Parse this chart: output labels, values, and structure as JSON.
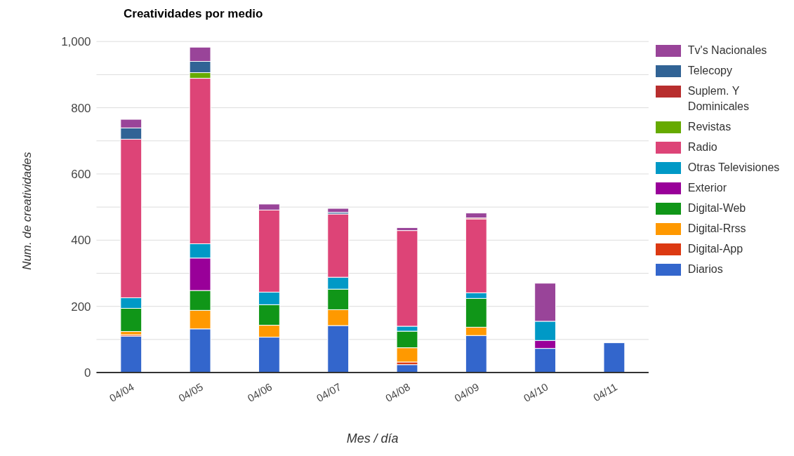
{
  "chart_data": {
    "type": "bar",
    "title": "Creatividades por medio",
    "xlabel": "Mes / día",
    "ylabel": "Num. de creatividades",
    "categories": [
      "04/04",
      "04/05",
      "04/06",
      "04/07",
      "04/08",
      "04/09",
      "04/10",
      "04/11"
    ],
    "stacked": true,
    "series": [
      {
        "name": "Diarios",
        "color": "#3366cc",
        "values": [
          110,
          132,
          107,
          142,
          24,
          112,
          73,
          90
        ]
      },
      {
        "name": "Digital-App",
        "color": "#dc3912",
        "values": [
          4,
          null,
          null,
          null,
          8,
          null,
          null,
          null
        ]
      },
      {
        "name": "Digital-Rrss",
        "color": "#ff9900",
        "values": [
          10,
          56,
          36,
          48,
          43,
          25,
          null,
          null
        ]
      },
      {
        "name": "Digital-Web",
        "color": "#109618",
        "values": [
          70,
          60,
          62,
          62,
          50,
          87,
          null,
          null
        ]
      },
      {
        "name": "Exterior",
        "color": "#990099",
        "values": [
          null,
          98,
          null,
          null,
          null,
          null,
          24,
          null
        ]
      },
      {
        "name": "Otras Televisiones",
        "color": "#0099c6",
        "values": [
          32,
          43,
          38,
          36,
          15,
          17,
          58,
          null
        ]
      },
      {
        "name": "Radio",
        "color": "#dd4477",
        "values": [
          479,
          500,
          248,
          191,
          289,
          223,
          null,
          null
        ]
      },
      {
        "name": "Revistas",
        "color": "#66aa00",
        "values": [
          null,
          17,
          null,
          null,
          null,
          null,
          null,
          null
        ]
      },
      {
        "name": "Suplem. Y Dominicales",
        "color": "#b82e2e",
        "values": [
          null,
          null,
          null,
          null,
          null,
          3,
          null,
          null
        ]
      },
      {
        "name": "Telecopy",
        "color": "#316395",
        "values": [
          34,
          34,
          null,
          5,
          null,
          null,
          null,
          null
        ]
      },
      {
        "name": "Tv's Nacionales",
        "color": "#994499",
        "values": [
          26,
          43,
          18,
          12,
          9,
          15,
          115,
          null
        ]
      }
    ],
    "ylim": [
      0,
      1000
    ],
    "yticks": [
      0,
      {
        "value": 100,
        "label": null
      },
      200,
      {
        "value": 300,
        "label": null
      },
      400,
      {
        "value": 500,
        "label": null
      },
      600,
      {
        "value": 700,
        "label": null
      },
      800,
      {
        "value": 900,
        "label": null
      },
      {
        "value": 1000,
        "label": "1,000"
      }
    ],
    "grid": "y",
    "legend": "right"
  }
}
